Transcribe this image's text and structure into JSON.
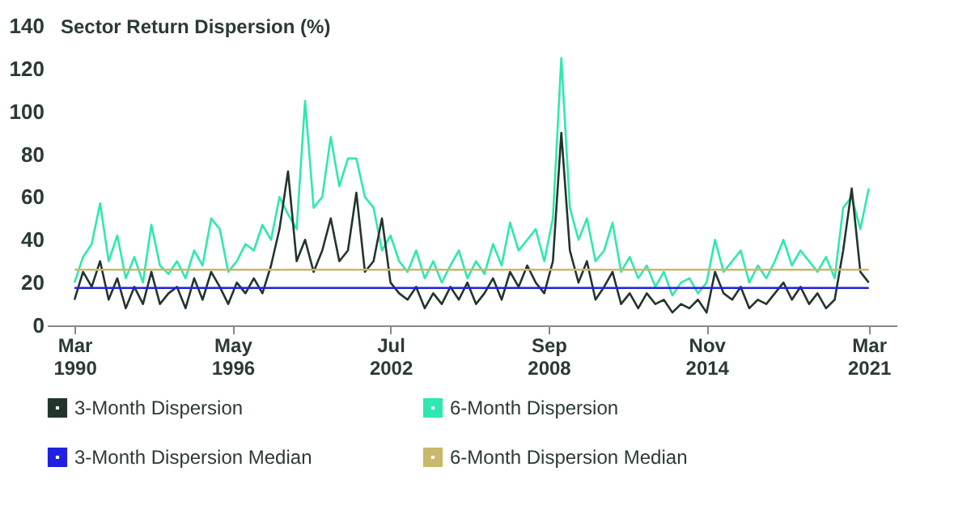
{
  "chart_data": {
    "type": "line",
    "ylabel": "Sector Return Dispersion (%)",
    "x": [
      "1990-03",
      "1990-07",
      "1990-11",
      "1991-03",
      "1991-07",
      "1991-11",
      "1992-03",
      "1992-07",
      "1992-11",
      "1993-03",
      "1993-07",
      "1993-11",
      "1994-03",
      "1994-07",
      "1994-11",
      "1995-03",
      "1995-07",
      "1995-11",
      "1996-03",
      "1996-07",
      "1996-11",
      "1997-03",
      "1997-07",
      "1997-11",
      "1998-03",
      "1998-07",
      "1998-11",
      "1999-03",
      "1999-07",
      "1999-11",
      "2000-03",
      "2000-07",
      "2000-11",
      "2001-03",
      "2001-07",
      "2001-11",
      "2002-03",
      "2002-07",
      "2002-11",
      "2003-03",
      "2003-07",
      "2003-11",
      "2004-03",
      "2004-07",
      "2004-11",
      "2005-03",
      "2005-07",
      "2005-11",
      "2006-03",
      "2006-07",
      "2006-11",
      "2007-03",
      "2007-07",
      "2007-11",
      "2008-03",
      "2008-07",
      "2008-11",
      "2009-03",
      "2009-07",
      "2009-11",
      "2010-03",
      "2010-07",
      "2010-11",
      "2011-03",
      "2011-07",
      "2011-11",
      "2012-03",
      "2012-07",
      "2012-11",
      "2013-03",
      "2013-07",
      "2013-11",
      "2014-03",
      "2014-07",
      "2014-11",
      "2015-03",
      "2015-07",
      "2015-11",
      "2016-03",
      "2016-07",
      "2016-11",
      "2017-03",
      "2017-07",
      "2017-11",
      "2018-03",
      "2018-07",
      "2018-11",
      "2019-03",
      "2019-07",
      "2019-11",
      "2020-03",
      "2020-07",
      "2020-11",
      "2021-03"
    ],
    "series": [
      {
        "name": "6-Month Dispersion",
        "color": "#2ee8b0",
        "values": [
          20,
          32,
          38,
          57,
          30,
          42,
          22,
          32,
          20,
          47,
          28,
          24,
          30,
          22,
          35,
          28,
          50,
          45,
          25,
          30,
          38,
          35,
          47,
          40,
          60,
          52,
          45,
          105,
          55,
          60,
          88,
          65,
          78,
          78,
          60,
          55,
          35,
          42,
          30,
          25,
          35,
          22,
          30,
          20,
          28,
          35,
          22,
          30,
          24,
          38,
          28,
          48,
          35,
          40,
          45,
          30,
          50,
          125,
          55,
          40,
          50,
          30,
          35,
          48,
          25,
          32,
          22,
          28,
          18,
          25,
          14,
          20,
          22,
          15,
          20,
          40,
          25,
          30,
          35,
          20,
          28,
          22,
          30,
          40,
          28,
          35,
          30,
          25,
          32,
          22,
          55,
          60,
          45,
          64
        ]
      },
      {
        "name": "3-Month Dispersion",
        "color": "#22352b",
        "values": [
          12,
          25,
          18,
          30,
          12,
          22,
          8,
          18,
          10,
          25,
          10,
          15,
          18,
          8,
          22,
          12,
          25,
          18,
          10,
          20,
          15,
          22,
          15,
          28,
          45,
          72,
          30,
          40,
          25,
          35,
          50,
          30,
          35,
          62,
          25,
          30,
          50,
          20,
          15,
          12,
          18,
          8,
          15,
          10,
          18,
          12,
          20,
          10,
          15,
          22,
          12,
          25,
          18,
          28,
          20,
          15,
          30,
          90,
          35,
          20,
          30,
          12,
          18,
          25,
          10,
          15,
          8,
          15,
          10,
          12,
          6,
          10,
          8,
          12,
          6,
          25,
          15,
          12,
          18,
          8,
          12,
          10,
          15,
          20,
          12,
          18,
          10,
          15,
          8,
          12,
          35,
          64,
          25,
          20
        ]
      },
      {
        "name": "3-Month Dispersion Median",
        "color": "#2020e0",
        "x": [
          "1990-03",
          "2021-03"
        ],
        "values": [
          17.5,
          17.5
        ]
      },
      {
        "name": "6-Month Dispersion Median",
        "color": "#c8b86a",
        "x": [
          "1990-03",
          "2021-03"
        ],
        "values": [
          26,
          26
        ]
      }
    ],
    "xlim": [
      "1989-02",
      "2022-04"
    ],
    "xticks": [
      {
        "value": "1990-03",
        "label": "Mar 1990"
      },
      {
        "value": "1996-05",
        "label": "May 1996"
      },
      {
        "value": "2002-07",
        "label": "Jul 2002"
      },
      {
        "value": "2008-09",
        "label": "Sep 2008"
      },
      {
        "value": "2014-11",
        "label": "Nov 2014"
      },
      {
        "value": "2021-03",
        "label": "Mar 2021"
      }
    ],
    "ylim": [
      0,
      140
    ],
    "yticks": [
      0,
      20,
      40,
      60,
      80,
      100,
      120,
      140
    ],
    "grid": false,
    "legend": "bottom",
    "marker": "none",
    "line_style": "solid"
  }
}
